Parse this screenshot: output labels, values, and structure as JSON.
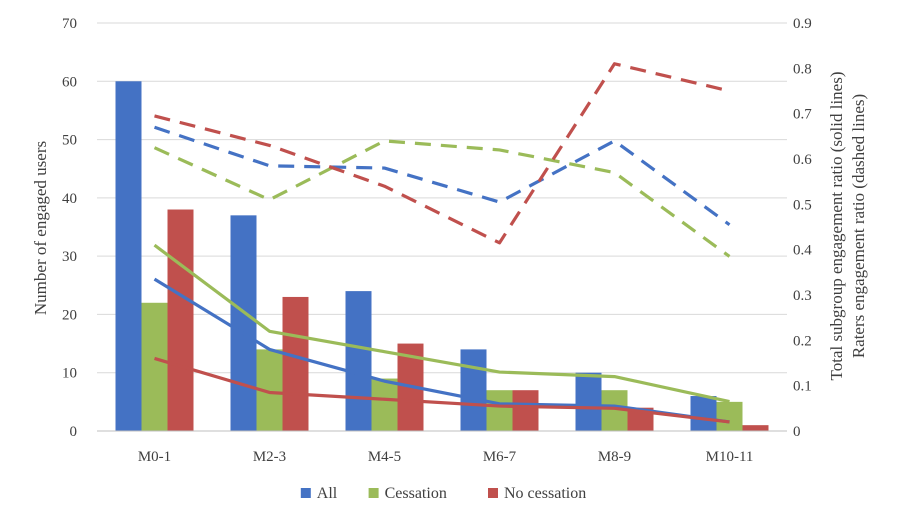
{
  "chart_data": {
    "type": "bar",
    "categories": [
      "M0-1",
      "M2-3",
      "M4-5",
      "M6-7",
      "M8-9",
      "M10-11"
    ],
    "y_left": {
      "label": "Number of engaged users",
      "min": 0,
      "max": 70,
      "step": 10
    },
    "y_right": {
      "label_line1": "Total subgroup engagement ratio (solid lines)",
      "label_line2": "Raters engagement ratio (dashed lines)",
      "min": 0,
      "max": 0.9,
      "step": 0.1
    },
    "grid": true,
    "legend_position": "bottom",
    "series": [
      {
        "name": "All",
        "color": "#4472C4",
        "values": [
          60,
          37,
          24,
          14,
          10,
          6
        ]
      },
      {
        "name": "Cessation",
        "color": "#9BBB59",
        "values": [
          22,
          14,
          9,
          7,
          7,
          5
        ]
      },
      {
        "name": "No cessation",
        "color": "#C0504D",
        "values": [
          38,
          23,
          15,
          7,
          4,
          1
        ]
      }
    ],
    "solid_lines": [
      {
        "color": "#4472C4",
        "values": [
          0.335,
          0.18,
          0.11,
          0.06,
          0.055,
          0.02
        ]
      },
      {
        "color": "#9BBB59",
        "values": [
          0.41,
          0.22,
          0.175,
          0.13,
          0.12,
          0.065
        ]
      },
      {
        "color": "#C0504D",
        "values": [
          0.16,
          0.085,
          0.07,
          0.055,
          0.05,
          0.02
        ]
      }
    ],
    "dashed_lines": [
      {
        "color": "#4472C4",
        "values": [
          0.67,
          0.585,
          0.58,
          0.505,
          0.64,
          0.455
        ]
      },
      {
        "color": "#9BBB59",
        "values": [
          0.625,
          0.51,
          0.64,
          0.62,
          0.57,
          0.385
        ]
      },
      {
        "color": "#C0504D",
        "values": [
          0.695,
          0.63,
          0.54,
          0.415,
          0.81,
          0.75
        ]
      }
    ]
  }
}
